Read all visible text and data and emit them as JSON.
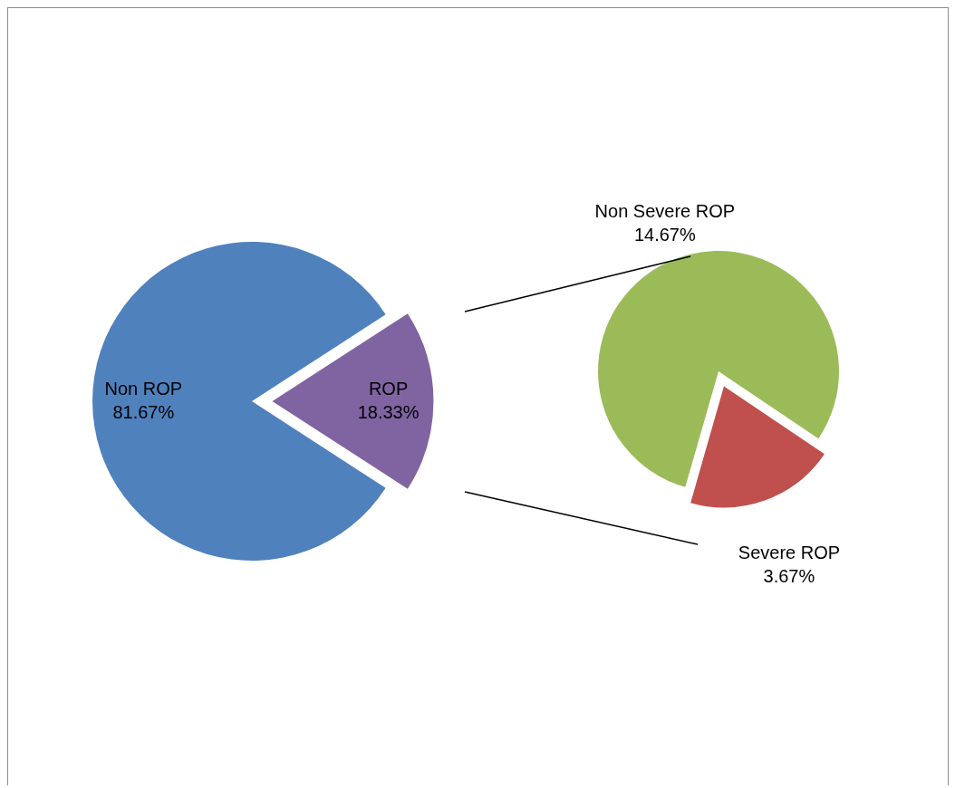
{
  "chart_data": [
    {
      "type": "pie",
      "categories": [
        "Non ROP",
        "ROP"
      ],
      "values": [
        81.67,
        18.33
      ],
      "colors": [
        "#4f81bd",
        "#8064a2"
      ],
      "value_labels": [
        "81.67%",
        "18.33%"
      ],
      "legend": false
    },
    {
      "type": "pie",
      "categories": [
        "Non Severe ROP",
        "Severe ROP"
      ],
      "values": [
        14.67,
        3.67
      ],
      "colors": [
        "#9bbb59",
        "#c0504d"
      ],
      "value_labels": [
        "14.67%",
        "3.67%"
      ],
      "legend": false
    }
  ]
}
